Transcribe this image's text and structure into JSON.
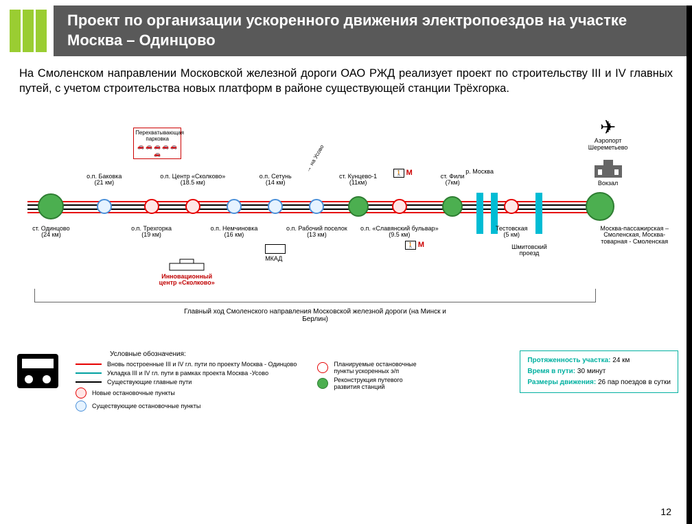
{
  "header": {
    "title": "Проект по организации ускоренного движения электропоездов на участке Москва – Одинцово",
    "accent_color": "#9acd32",
    "bg_color": "#595959"
  },
  "description": "На Смоленском направлении Московской железной дороги ОАО РЖД реализует проект по строительству III и IV главных путей,  с учетом строительства новых платформ в районе существующей станции Трёхгорка.",
  "tracks": {
    "colors": {
      "new": "#e60000",
      "usovo": "#00a0a0",
      "existing": "#000000"
    },
    "offsets": [
      -8,
      -3,
      3,
      8
    ]
  },
  "stations": [
    {
      "name": "ст. Одинцово",
      "km": "(24 км)",
      "x": 4,
      "top": false,
      "size": 38,
      "fill": "#4caf50",
      "stroke": "#2e7d32"
    },
    {
      "name": "о.п. Баковка",
      "km": "(21 км)",
      "x": 13,
      "top": true,
      "size": 22,
      "fill": "#e6f3ff",
      "stroke": "#4a90d9"
    },
    {
      "name": "о.п. Трехгорка",
      "km": "(19 км)",
      "x": 21,
      "top": false,
      "size": 22,
      "fill": "#ffe6e6",
      "stroke": "#e60000"
    },
    {
      "name": "о.п. Центр «Сколково»",
      "km": "(18.5 км)",
      "x": 28,
      "top": true,
      "size": 22,
      "fill": "#ffe6e6",
      "stroke": "#e60000"
    },
    {
      "name": "о.п. Немчиновка",
      "km": "(16 км)",
      "x": 35,
      "top": false,
      "size": 22,
      "fill": "#e6f3ff",
      "stroke": "#4a90d9"
    },
    {
      "name": "о.п. Сетунь",
      "km": "(14 км)",
      "x": 42,
      "top": true,
      "size": 22,
      "fill": "#e6f3ff",
      "stroke": "#4a90d9"
    },
    {
      "name": "о.п. Рабочий поселок",
      "km": "(13 км)",
      "x": 49,
      "top": false,
      "size": 22,
      "fill": "#e6f3ff",
      "stroke": "#4a90d9"
    },
    {
      "name": "ст. Кунцево-1",
      "km": "(11км)",
      "x": 56,
      "top": true,
      "size": 30,
      "fill": "#4caf50",
      "stroke": "#2e7d32"
    },
    {
      "name": "о.п. «Славянский бульвар»",
      "km": "(9.5 км)",
      "x": 63,
      "top": false,
      "size": 22,
      "fill": "#ffe6e6",
      "stroke": "#e60000"
    },
    {
      "name": "ст. Фили",
      "km": "(7км)",
      "x": 72,
      "top": true,
      "size": 30,
      "fill": "#4caf50",
      "stroke": "#2e7d32"
    },
    {
      "name": "Тестовская",
      "km": "(5 км)",
      "x": 82,
      "top": false,
      "size": 22,
      "fill": "#ffe6e6",
      "stroke": "#e60000"
    },
    {
      "name": "",
      "km": "",
      "x": 97,
      "top": false,
      "size": 42,
      "fill": "#4caf50",
      "stroke": "#2e7d32"
    }
  ],
  "terminal_label": "Москва-пассажирская – Смоленская, Москва-товарная - Смоленская",
  "rivers": [
    {
      "x": 76,
      "label": "р. Москва"
    },
    {
      "x": 78.5,
      "label": ""
    },
    {
      "x": 86,
      "label": ""
    }
  ],
  "annotations": {
    "parking": {
      "label": "Перехватывающая парковка",
      "x": 22
    },
    "usovo_arrow": {
      "label": "на Усово",
      "x": 46
    },
    "mkad": {
      "label": "МКАД",
      "x": 42
    },
    "skolkovo": {
      "label": "Инновационный центр «Сколково»",
      "x": 27,
      "color": "#c00000"
    },
    "metro1": {
      "x": 62,
      "label": "М"
    },
    "metro2": {
      "x": 64,
      "label": "М"
    },
    "shmitov": {
      "label": "Шмитовский проезд",
      "x": 85
    },
    "airport": {
      "label": "Аэропорт Шереметьево",
      "x": 96
    },
    "vokzal": {
      "label": "Вокзал",
      "x": 96
    }
  },
  "main_bracket": "Главный ход Смоленского направления Московской железной дороги (на Минск и Берлин)",
  "legend": {
    "title": "Условные обозначения:",
    "lines": [
      {
        "color": "#e60000",
        "label": "Вновь построенные III и IV гл. пути по проекту Москва - Одинцово"
      },
      {
        "color": "#00a0a0",
        "label": "Укладка III и IV гл. пути в рамках проекта Москва -Усово"
      },
      {
        "color": "#000000",
        "label": "Существующие главные пути"
      }
    ],
    "circles": [
      {
        "fill": "#ffe6e6",
        "stroke": "#e60000",
        "label": "Новые остановочные пункты"
      },
      {
        "fill": "#e6f3ff",
        "stroke": "#4a90d9",
        "label": "Существующие остановочные пункты"
      }
    ],
    "circles2": [
      {
        "fill": "#fff",
        "stroke": "#e60000",
        "label": "Планируемые остановочные пункты ускоренных э/п"
      },
      {
        "fill": "#4caf50",
        "stroke": "#2e7d32",
        "label": "Реконструкция путевого развития станций"
      }
    ]
  },
  "info": [
    {
      "key": "Протяженность участка:",
      "val": "24 км"
    },
    {
      "key": "Время в пути:",
      "val": "30 минут"
    },
    {
      "key": "Размеры движения:",
      "val": "26 пар поездов в сутки"
    }
  ],
  "page_number": "12"
}
